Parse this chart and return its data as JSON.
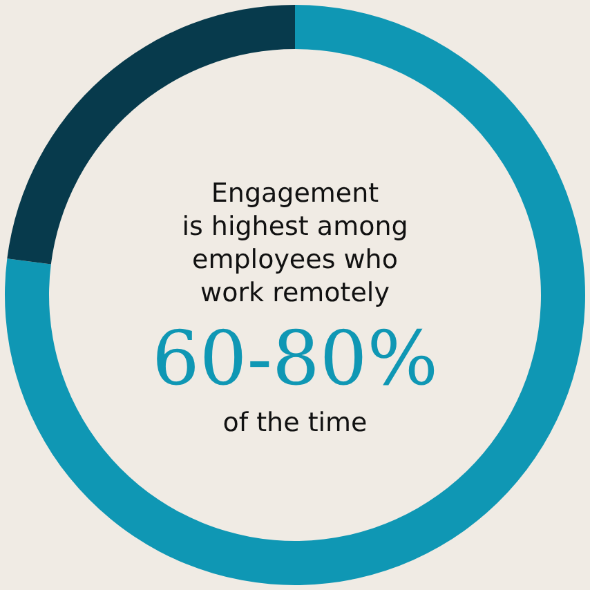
{
  "chart_data": {
    "type": "donut",
    "categories": [
      null,
      null
    ],
    "values": [
      77,
      23
    ],
    "colors": [
      "#0f97b4",
      "#073a4c"
    ],
    "annotations": [
      "Engagement\nis highest among\nemployees who\nwork remotely",
      "60-80%",
      "of the time"
    ]
  }
}
